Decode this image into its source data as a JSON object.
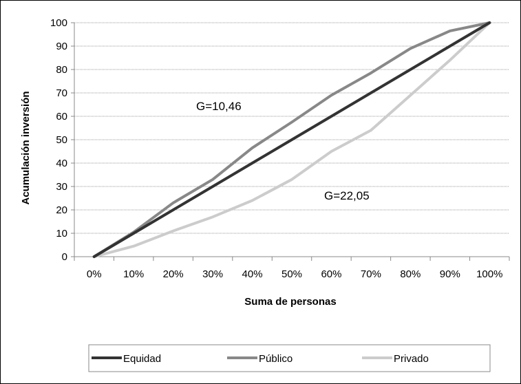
{
  "chart_data": {
    "type": "line",
    "xlabel": "Suma de personas",
    "ylabel": "Acumulación inversión",
    "categories": [
      "0%",
      "10%",
      "20%",
      "30%",
      "40%",
      "50%",
      "60%",
      "70%",
      "80%",
      "90%",
      "100%"
    ],
    "ylim": [
      0,
      100
    ],
    "yticks": [
      0,
      10,
      20,
      30,
      40,
      50,
      60,
      70,
      80,
      90,
      100
    ],
    "grid": true,
    "legend_position": "bottom",
    "series": [
      {
        "name": "Equidad",
        "color": "#333333",
        "values": [
          0,
          10,
          20,
          30,
          40,
          50,
          60,
          70,
          80,
          90,
          100
        ]
      },
      {
        "name": "Público",
        "color": "#888888",
        "values": [
          0,
          10.5,
          23,
          33,
          46.5,
          57.5,
          69,
          78.5,
          89,
          96.5,
          100
        ]
      },
      {
        "name": "Privado",
        "color": "#cccccc",
        "values": [
          0,
          4.5,
          11,
          17,
          24,
          33,
          45,
          54,
          69,
          84,
          100
        ]
      }
    ],
    "annotations": [
      {
        "text": "G=10,46"
      },
      {
        "text": "G=22,05"
      }
    ]
  }
}
